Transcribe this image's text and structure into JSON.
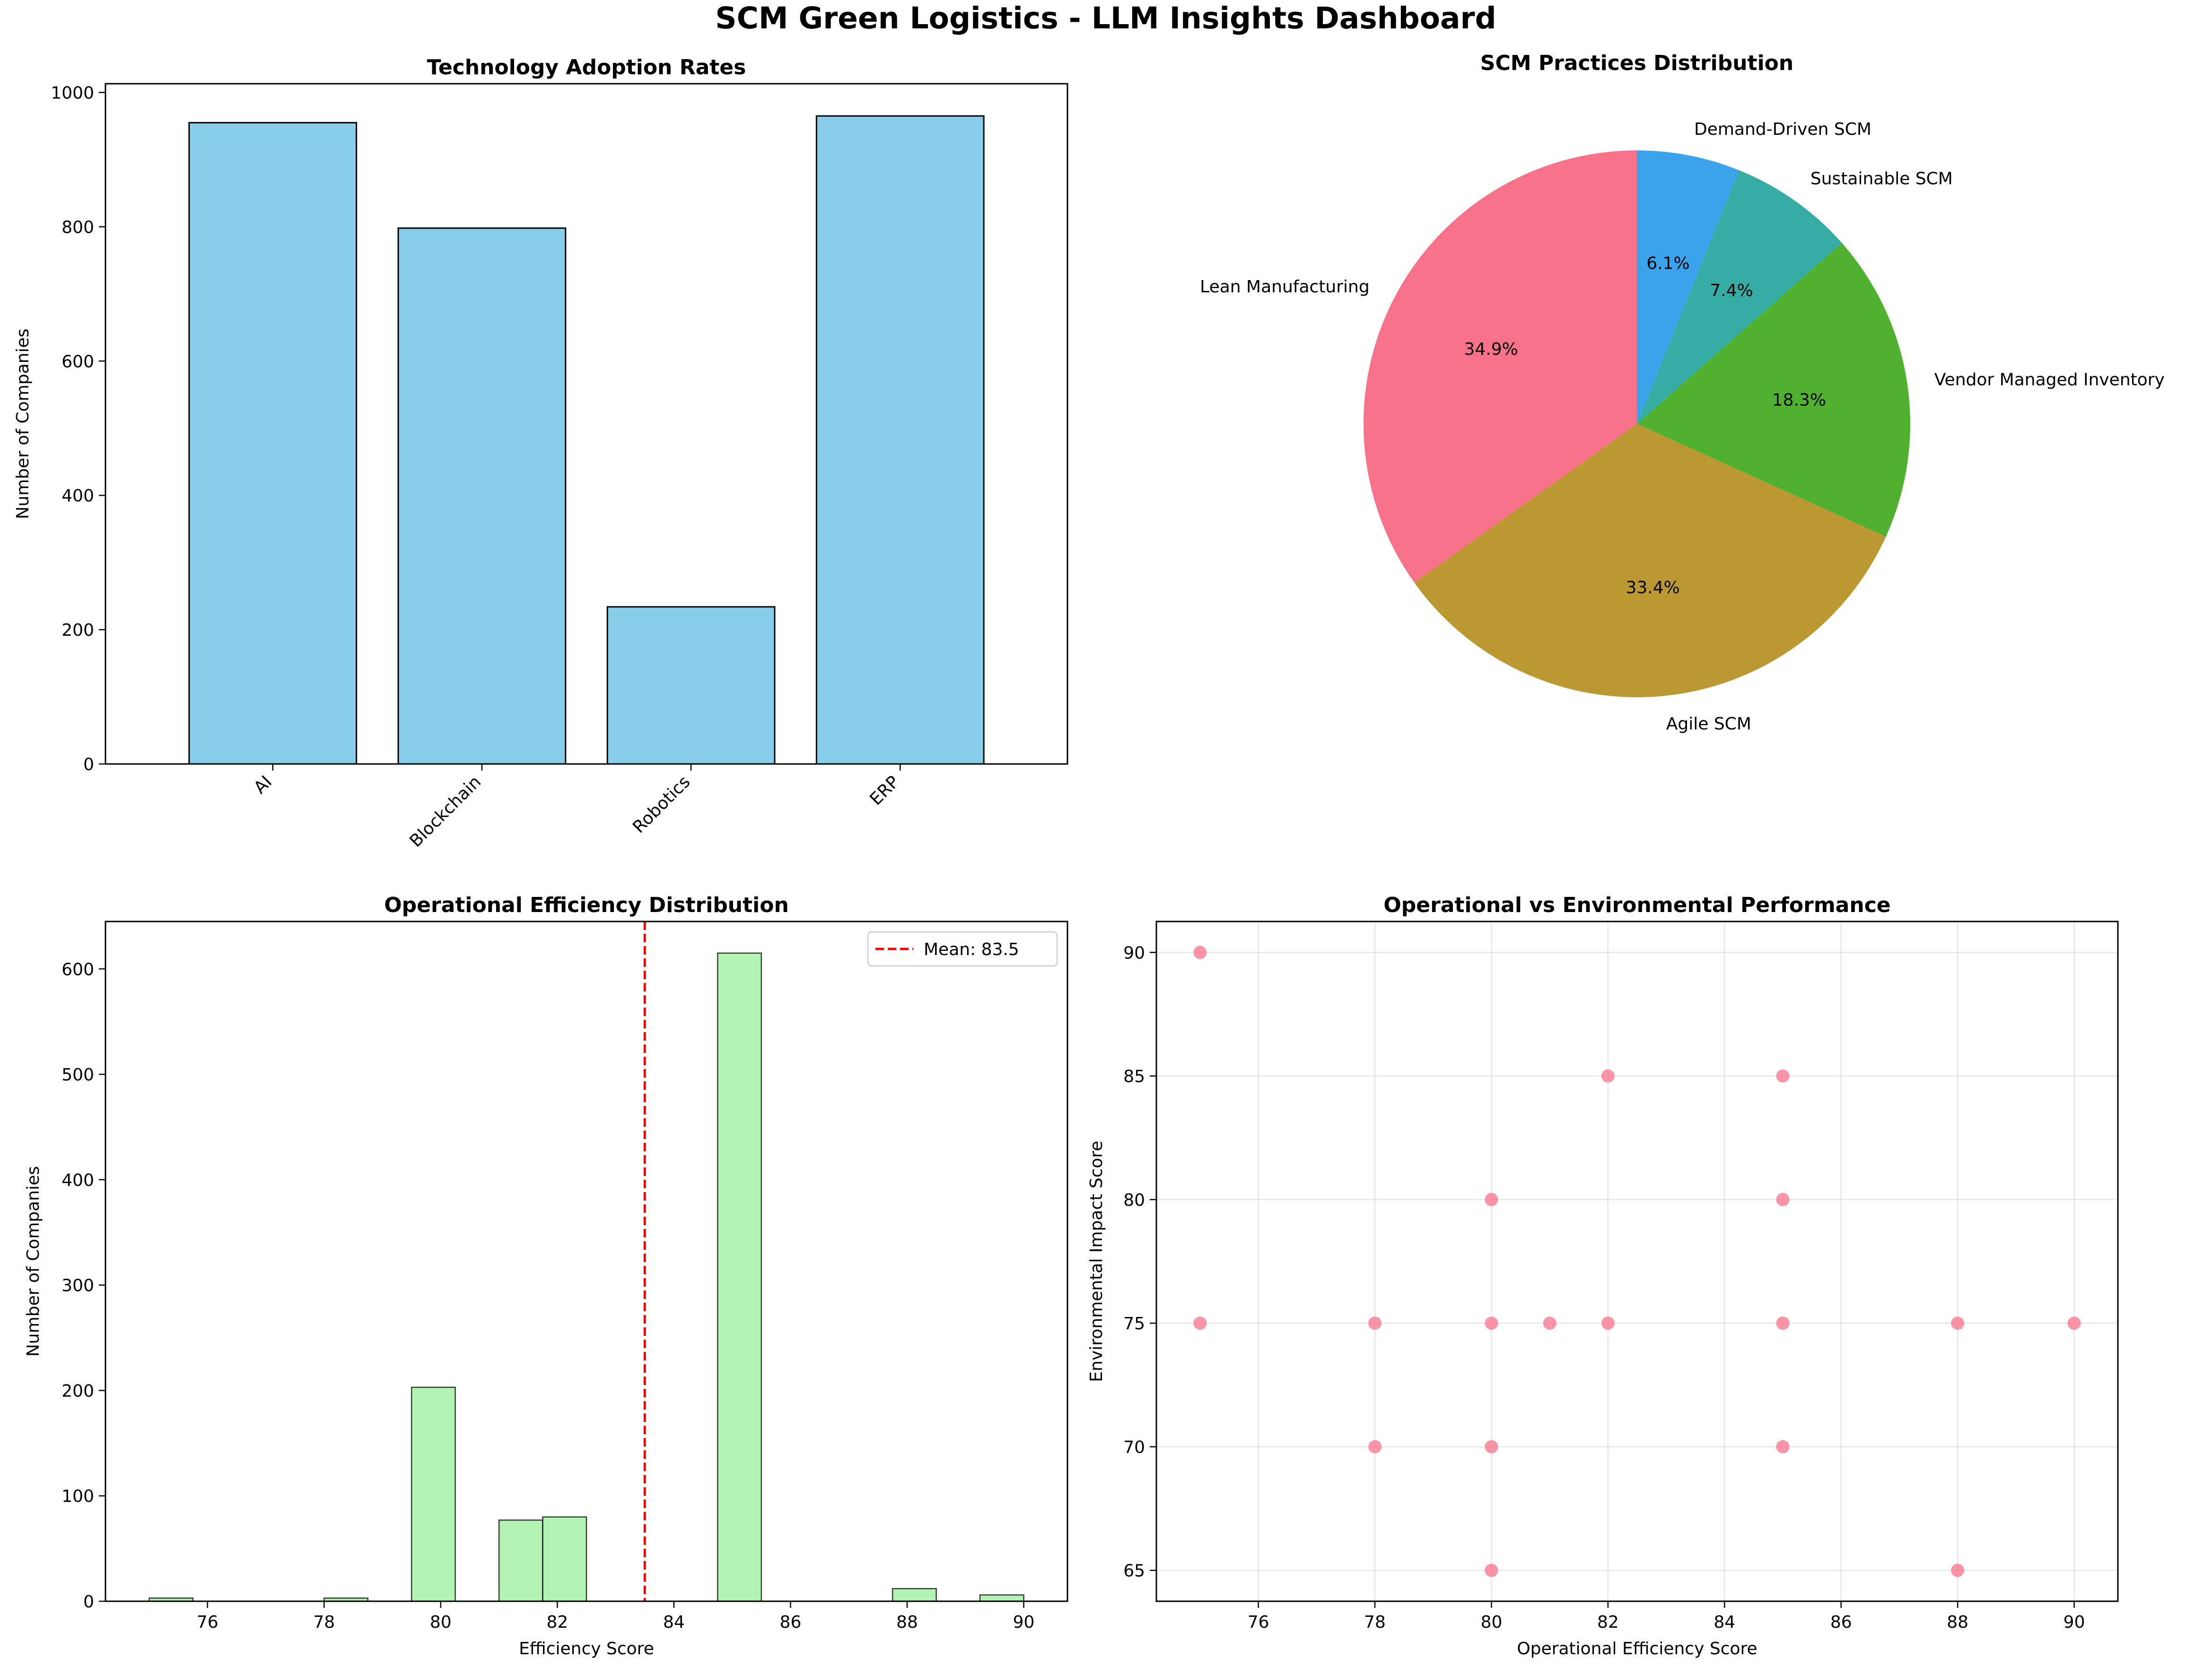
{
  "title": "SCM Green Logistics - LLM Insights Dashboard",
  "chart_data": [
    {
      "type": "bar",
      "title": "Technology Adoption Rates",
      "xlabel": "",
      "ylabel": "Number of Companies",
      "categories": [
        "AI",
        "Blockchain",
        "Robotics",
        "ERP"
      ],
      "values": [
        955,
        798,
        234,
        965
      ],
      "ylim": [
        0,
        1013
      ],
      "yticks": [
        0,
        200,
        400,
        600,
        800,
        1000
      ],
      "color": "#87ceeb",
      "grid": false
    },
    {
      "type": "pie",
      "title": "SCM Practices Distribution",
      "labels": [
        "Lean Manufacturing",
        "Agile SCM",
        "Vendor Managed Inventory",
        "Sustainable SCM",
        "Demand-Driven SCM"
      ],
      "values": [
        34.9,
        33.4,
        18.3,
        7.4,
        6.1
      ],
      "pct_labels": [
        "34.9%",
        "33.4%",
        "18.3%",
        "7.4%",
        "6.1%"
      ],
      "colors": [
        "#f77189",
        "#bb9832",
        "#50b131",
        "#36ada4",
        "#3ba3ec"
      ]
    },
    {
      "type": "bar",
      "subtype": "histogram",
      "title": "Operational Efficiency Distribution",
      "xlabel": "Efficiency Score",
      "ylabel": "Number of Companies",
      "bin_range": [
        75,
        90
      ],
      "bins": 20,
      "counts": [
        3,
        0,
        0,
        0,
        3,
        0,
        203,
        0,
        77,
        80,
        0,
        0,
        0,
        615,
        0,
        0,
        0,
        12,
        0,
        6
      ],
      "xlim": [
        74.25,
        90.75
      ],
      "ylim": [
        0,
        645
      ],
      "xticks": [
        76,
        78,
        80,
        82,
        84,
        86,
        88,
        90
      ],
      "yticks": [
        0,
        100,
        200,
        300,
        400,
        500,
        600
      ],
      "mean": 83.5,
      "mean_label": "Mean: 83.5",
      "color": "#b2f2b2",
      "mean_color": "#ff0000",
      "legend": "top-right",
      "grid": false
    },
    {
      "type": "scatter",
      "title": "Operational vs Environmental Performance",
      "xlabel": "Operational Efficiency Score",
      "ylabel": "Environmental Impact Score",
      "xlim": [
        74.25,
        90.75
      ],
      "ylim": [
        63.75,
        91.25
      ],
      "xticks": [
        76,
        78,
        80,
        82,
        84,
        86,
        88,
        90
      ],
      "yticks": [
        65,
        70,
        75,
        80,
        85,
        90
      ],
      "points": [
        [
          75,
          90
        ],
        [
          75,
          75
        ],
        [
          78,
          75
        ],
        [
          78,
          70
        ],
        [
          80,
          80
        ],
        [
          80,
          75
        ],
        [
          80,
          70
        ],
        [
          80,
          65
        ],
        [
          81,
          75
        ],
        [
          82,
          85
        ],
        [
          82,
          75
        ],
        [
          85,
          85
        ],
        [
          85,
          80
        ],
        [
          85,
          75
        ],
        [
          85,
          70
        ],
        [
          88,
          75
        ],
        [
          88,
          65
        ],
        [
          90,
          75
        ]
      ],
      "color": "#f77189",
      "grid": true
    }
  ]
}
